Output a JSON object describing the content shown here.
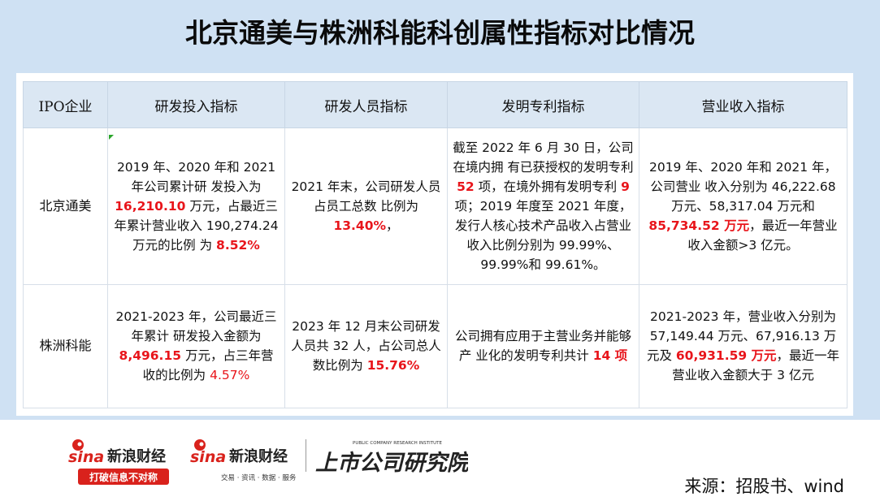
{
  "title": "北京通美与株洲科能科创属性指标对比情况",
  "table": {
    "headers": [
      "IPO企业",
      "研发投入指标",
      "研发人员指标",
      "发明专利指标",
      "营业收入指标"
    ],
    "rows": [
      {
        "company": "北京通美",
        "rd_investment": {
          "p1": "2019 年、2020 年和 2021 年公司累计研 发投入为",
          "v1": "16,210.10",
          "p2": " 万元，占最近三年累计营业收入 190,274.24 万元的比例 为 ",
          "v2": "8.52%"
        },
        "rd_staff": {
          "p1": "2021 年末，公司研发人员占员工总数 比例为 ",
          "v1": "13.40%",
          "p2": "，"
        },
        "patents": {
          "p1": "截至 2022 年 6 月 30 日，公司在境内拥 有已获授权的发明专利 ",
          "v1": "52",
          "p2": " 项，在境外拥有发明专利 ",
          "v2": "9",
          "p3": " 项；2019 年度至 2021 年度，发行人核心技术产品收入占营业 收入比例分别为 99.99%、99.99%和 99.61%。"
        },
        "revenue": {
          "p1": "2019 年、2020 年和 2021 年，公司营业 收入分别为 46,222.68 万元、58,317.04 万元和 ",
          "v1": "85,734.52 万元",
          "p2": "，最近一年营业 收入金额>3 亿元。"
        }
      },
      {
        "company": "株洲科能",
        "rd_investment": {
          "p1": "2021-2023 年，公司最近三年累计 研发投入金额为 ",
          "v1": "8,496.15",
          "p2": " 万元，占三年营收的比例为 ",
          "v2": "4.57%"
        },
        "rd_staff": {
          "p1": "2023 年 12 月末公司研发人员共 32 人，占公司总人数比例为 ",
          "v1": "15.76%"
        },
        "patents": {
          "p1": "公司拥有应用于主营业务并能够产 业化的发明专利共计 ",
          "v1": "14 项"
        },
        "revenue": {
          "p1": "2021-2023 年，营业收入分别为 57,149.44 万元、67,916.13 万元及 ",
          "v1": "60,931.59 万元",
          "p2": "，最近一年营业收入金额大于 3 亿元"
        }
      }
    ]
  },
  "footer": {
    "logo1_sina": "sina",
    "logo1_name": "新浪财经",
    "logo1_slogan": "打破信息不对称",
    "logo2_sina": "sina",
    "logo2_name": "新浪财经",
    "logo2_tagline": "交易 · 资讯 · 数据 · 服务",
    "logo3_en": "PUBLIC COMPANY RESEARCH INSTITUTE",
    "logo3_cn": "上市公司研究院",
    "source": "来源：招股书、wind"
  },
  "colors": {
    "background": "#cfe1f3",
    "header_bg": "#dbe7f3",
    "highlight_red": "#e8151b",
    "brand_red": "#d9221c"
  }
}
